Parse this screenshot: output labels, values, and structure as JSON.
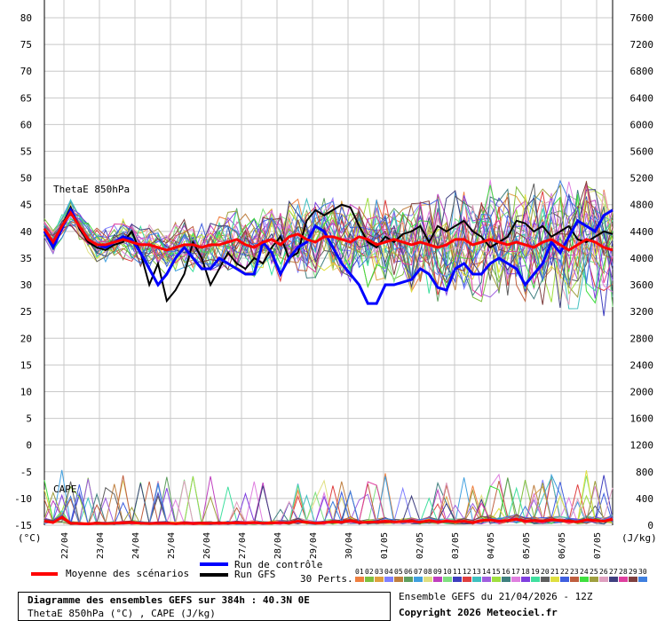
{
  "chart_data": {
    "type": "line",
    "title": "Diagramme des ensembles GEFS sur 384h : 40.3N 0E",
    "subtitle": "ThetaE 850hPa (°C) , CAPE (J/kg)",
    "left_unit": "(°C)",
    "right_unit": "(J/kg)",
    "left_ylim": [
      -15,
      80
    ],
    "left_ticks": [
      80,
      75,
      70,
      65,
      60,
      55,
      50,
      45,
      40,
      35,
      30,
      25,
      20,
      15,
      10,
      5,
      0,
      -5,
      -10,
      -15
    ],
    "right_ylim": [
      0,
      7600
    ],
    "right_ticks": [
      7600,
      7200,
      6800,
      6400,
      6000,
      5600,
      5200,
      4800,
      4400,
      4000,
      3600,
      3200,
      2800,
      2400,
      2000,
      1600,
      1200,
      800,
      400,
      0
    ],
    "x_labels": [
      "22/04",
      "23/04",
      "24/04",
      "25/04",
      "26/04",
      "27/04",
      "28/04",
      "29/04",
      "30/04",
      "01/05",
      "02/05",
      "03/05",
      "04/05",
      "05/05",
      "06/05",
      "07/05"
    ],
    "grid": true,
    "panel_labels": {
      "thetae": "ThetaE 850hPa",
      "cape": "CAPE"
    },
    "series": [
      {
        "name": "Moyenne des scénarios",
        "color": "#ff0000",
        "values": [
          40.5,
          38,
          41,
          43.5,
          41,
          38.5,
          37.5,
          37.5,
          38,
          38.5,
          38,
          37.5,
          37.5,
          37,
          36.5,
          37,
          37.5,
          37.5,
          37,
          37.5,
          37.5,
          38,
          38.5,
          37.5,
          37,
          38,
          38.5,
          37.5,
          39,
          39.5,
          38.5,
          38,
          39,
          39,
          38.5,
          38,
          39,
          38.5,
          37.5,
          38,
          38.5,
          38,
          37.5,
          38,
          37.5,
          37,
          37.5,
          38.5,
          38.5,
          37.5,
          38,
          38.5,
          38,
          37.5,
          38,
          37.5,
          37,
          38,
          38.5,
          37.5,
          36.5,
          37.5,
          38.5,
          38,
          37,
          36.5
        ]
      },
      {
        "name": "Run de contrôle",
        "color": "#0000ff",
        "values": [
          40,
          37,
          40.5,
          44,
          41,
          38.5,
          37.5,
          37,
          38,
          39,
          38.5,
          36,
          33,
          30,
          32,
          35,
          37,
          35,
          33,
          33,
          35,
          34,
          33,
          32,
          32,
          38,
          36,
          32,
          35,
          37,
          38,
          41,
          40,
          37,
          34,
          32,
          30,
          26.5,
          26.5,
          30,
          30,
          30.5,
          31,
          33,
          32,
          29.5,
          29,
          33,
          34,
          32,
          32,
          34,
          35,
          34,
          33,
          30,
          32,
          34,
          38,
          36,
          39,
          42,
          41,
          40,
          43,
          44
        ]
      },
      {
        "name": "Run GFS",
        "color": "#000000",
        "values": [
          40.5,
          37.5,
          41,
          44.5,
          40.5,
          38,
          37,
          36.5,
          37.5,
          38,
          40,
          36,
          30,
          34,
          27,
          29,
          32,
          38,
          35,
          30,
          33,
          36,
          34,
          33,
          35,
          34,
          37,
          39,
          35,
          36,
          42,
          44,
          43,
          44,
          45,
          44.5,
          41,
          38,
          37,
          39,
          38,
          39.5,
          40,
          41,
          38,
          41,
          40,
          41,
          42,
          40,
          39,
          37,
          38,
          39,
          42,
          41.5,
          40,
          41,
          39,
          40,
          41,
          38.5,
          38,
          39,
          40,
          39.5
        ]
      }
    ],
    "perturbations_count": 30,
    "perturbation_labels": [
      "01",
      "02",
      "03",
      "04",
      "05",
      "06",
      "07",
      "08",
      "09",
      "10",
      "11",
      "12",
      "13",
      "14",
      "15",
      "16",
      "17",
      "18",
      "19",
      "20",
      "21",
      "22",
      "23",
      "24",
      "25",
      "26",
      "27",
      "28",
      "29",
      "30"
    ],
    "perturbation_colors": [
      "#ef7f3f",
      "#7fbf3f",
      "#dfa03f",
      "#7f7fff",
      "#bf7f3f",
      "#5f9f5f",
      "#3f9fdf",
      "#dfdf7f",
      "#bf3fbf",
      "#7fdf7f",
      "#3f3fbf",
      "#df3f3f",
      "#3fbfbf",
      "#9f5fdf",
      "#9fdf3f",
      "#3f7f7f",
      "#df7fdf",
      "#7f3fdf",
      "#3fdf9f",
      "#5f5f5f",
      "#dfdf3f",
      "#3f5fdf",
      "#bf5f3f",
      "#3fdf3f",
      "#9f9f3f",
      "#df9fbf",
      "#3f3f7f",
      "#df3f9f",
      "#7f3f3f",
      "#3f7fdf"
    ],
    "cape_mean": [
      60,
      40,
      120,
      30,
      25,
      20,
      30,
      25,
      30,
      35,
      40,
      30,
      25,
      28,
      30,
      24,
      30,
      25,
      30,
      28,
      30,
      32,
      35,
      30,
      40,
      30,
      35,
      40,
      35,
      60,
      45,
      30,
      40,
      50,
      45,
      70,
      40,
      45,
      50,
      60,
      50,
      55,
      60,
      45,
      70,
      50,
      60,
      50,
      60,
      40,
      70,
      80,
      60,
      70,
      90,
      60,
      70,
      60,
      80,
      70,
      60,
      50,
      80,
      70,
      60,
      90
    ],
    "legend": {
      "mean": "Moyenne des scénarios",
      "control": "Run de contrôle",
      "gfs": "Run GFS",
      "perts": "30 Perts."
    }
  },
  "credits": {
    "line1": "Ensemble GEFS du 21/04/2026 - 12Z",
    "line2": "Copyright 2026 Meteociel.fr"
  }
}
